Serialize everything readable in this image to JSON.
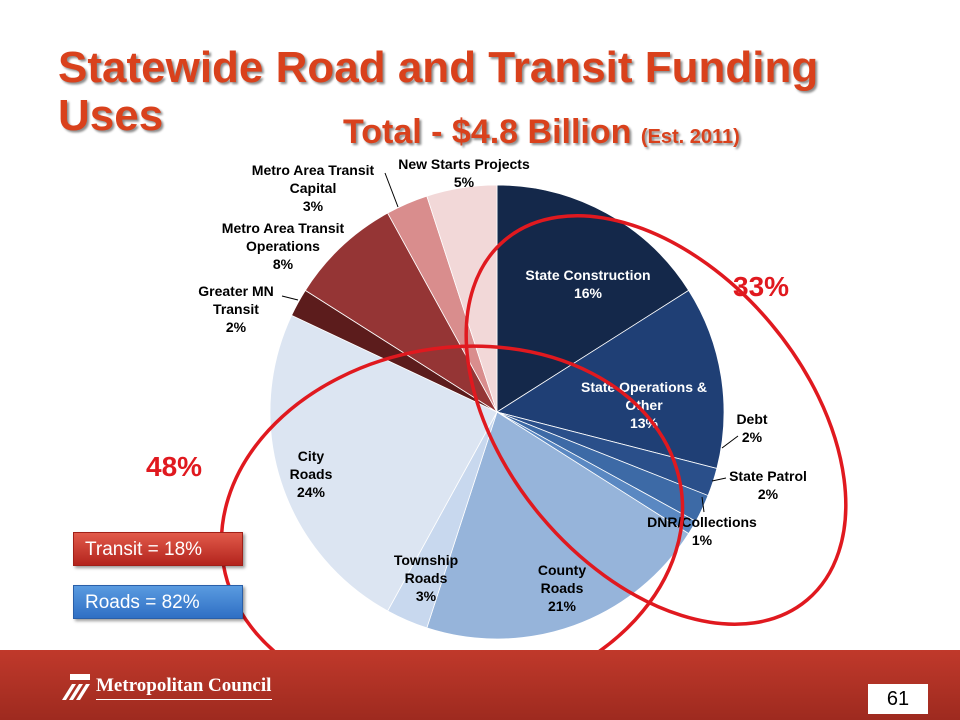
{
  "slide": {
    "title_line1": "Statewide Road and Transit Funding",
    "title_line2": "Uses",
    "subtitle_main": "Total - $4.8 Billion",
    "subtitle_est": "(Est. 2011)",
    "page_number": "61",
    "logo_text": "Metropolitan Council"
  },
  "summary": {
    "transit_label": "Transit = 18%",
    "roads_label": "Roads = 82%",
    "transit_color": "#c8302a",
    "roads_color": "#3f81d1"
  },
  "groups": {
    "roads_pct": "48%",
    "state_pct": "33%",
    "ring_color": "#e0191f"
  },
  "chart_data": {
    "type": "pie",
    "title": "Total - $4.8 Billion (Est. 2011)",
    "slices": [
      {
        "name": "State Construction",
        "value": 16,
        "label": "16%",
        "color": "#14284a",
        "text_color": "#ffffff"
      },
      {
        "name": "State Operations & Other",
        "value": 13,
        "label": "13%",
        "color": "#1f3f75",
        "text_color": "#ffffff"
      },
      {
        "name": "Debt",
        "value": 2,
        "label": "2%",
        "color": "#2a4f8a",
        "text_color": "#000000"
      },
      {
        "name": "State Patrol",
        "value": 2,
        "label": "2%",
        "color": "#3d6aa6",
        "text_color": "#000000"
      },
      {
        "name": "DNR/Collections",
        "value": 1,
        "label": "1%",
        "color": "#5a88c2",
        "text_color": "#000000"
      },
      {
        "name": "County Roads",
        "value": 21,
        "label": "21%",
        "color": "#96b4da",
        "text_color": "#000000"
      },
      {
        "name": "Township Roads",
        "value": 3,
        "label": "3%",
        "color": "#c8d8ee",
        "text_color": "#000000"
      },
      {
        "name": "City Roads",
        "value": 24,
        "label": "24%",
        "color": "#dce5f2",
        "text_color": "#000000"
      },
      {
        "name": "Greater MN Transit",
        "value": 2,
        "label": "2%",
        "color": "#5c1c1c",
        "text_color": "#000000"
      },
      {
        "name": "Metro Area Transit Operations",
        "value": 8,
        "label": "8%",
        "color": "#953535",
        "text_color": "#000000"
      },
      {
        "name": "Metro Area Transit Capital",
        "value": 3,
        "label": "3%",
        "color": "#d98d8d",
        "text_color": "#000000"
      },
      {
        "name": "New Starts Projects",
        "value": 5,
        "label": "5%",
        "color": "#f2d8d8",
        "text_color": "#000000"
      }
    ]
  }
}
